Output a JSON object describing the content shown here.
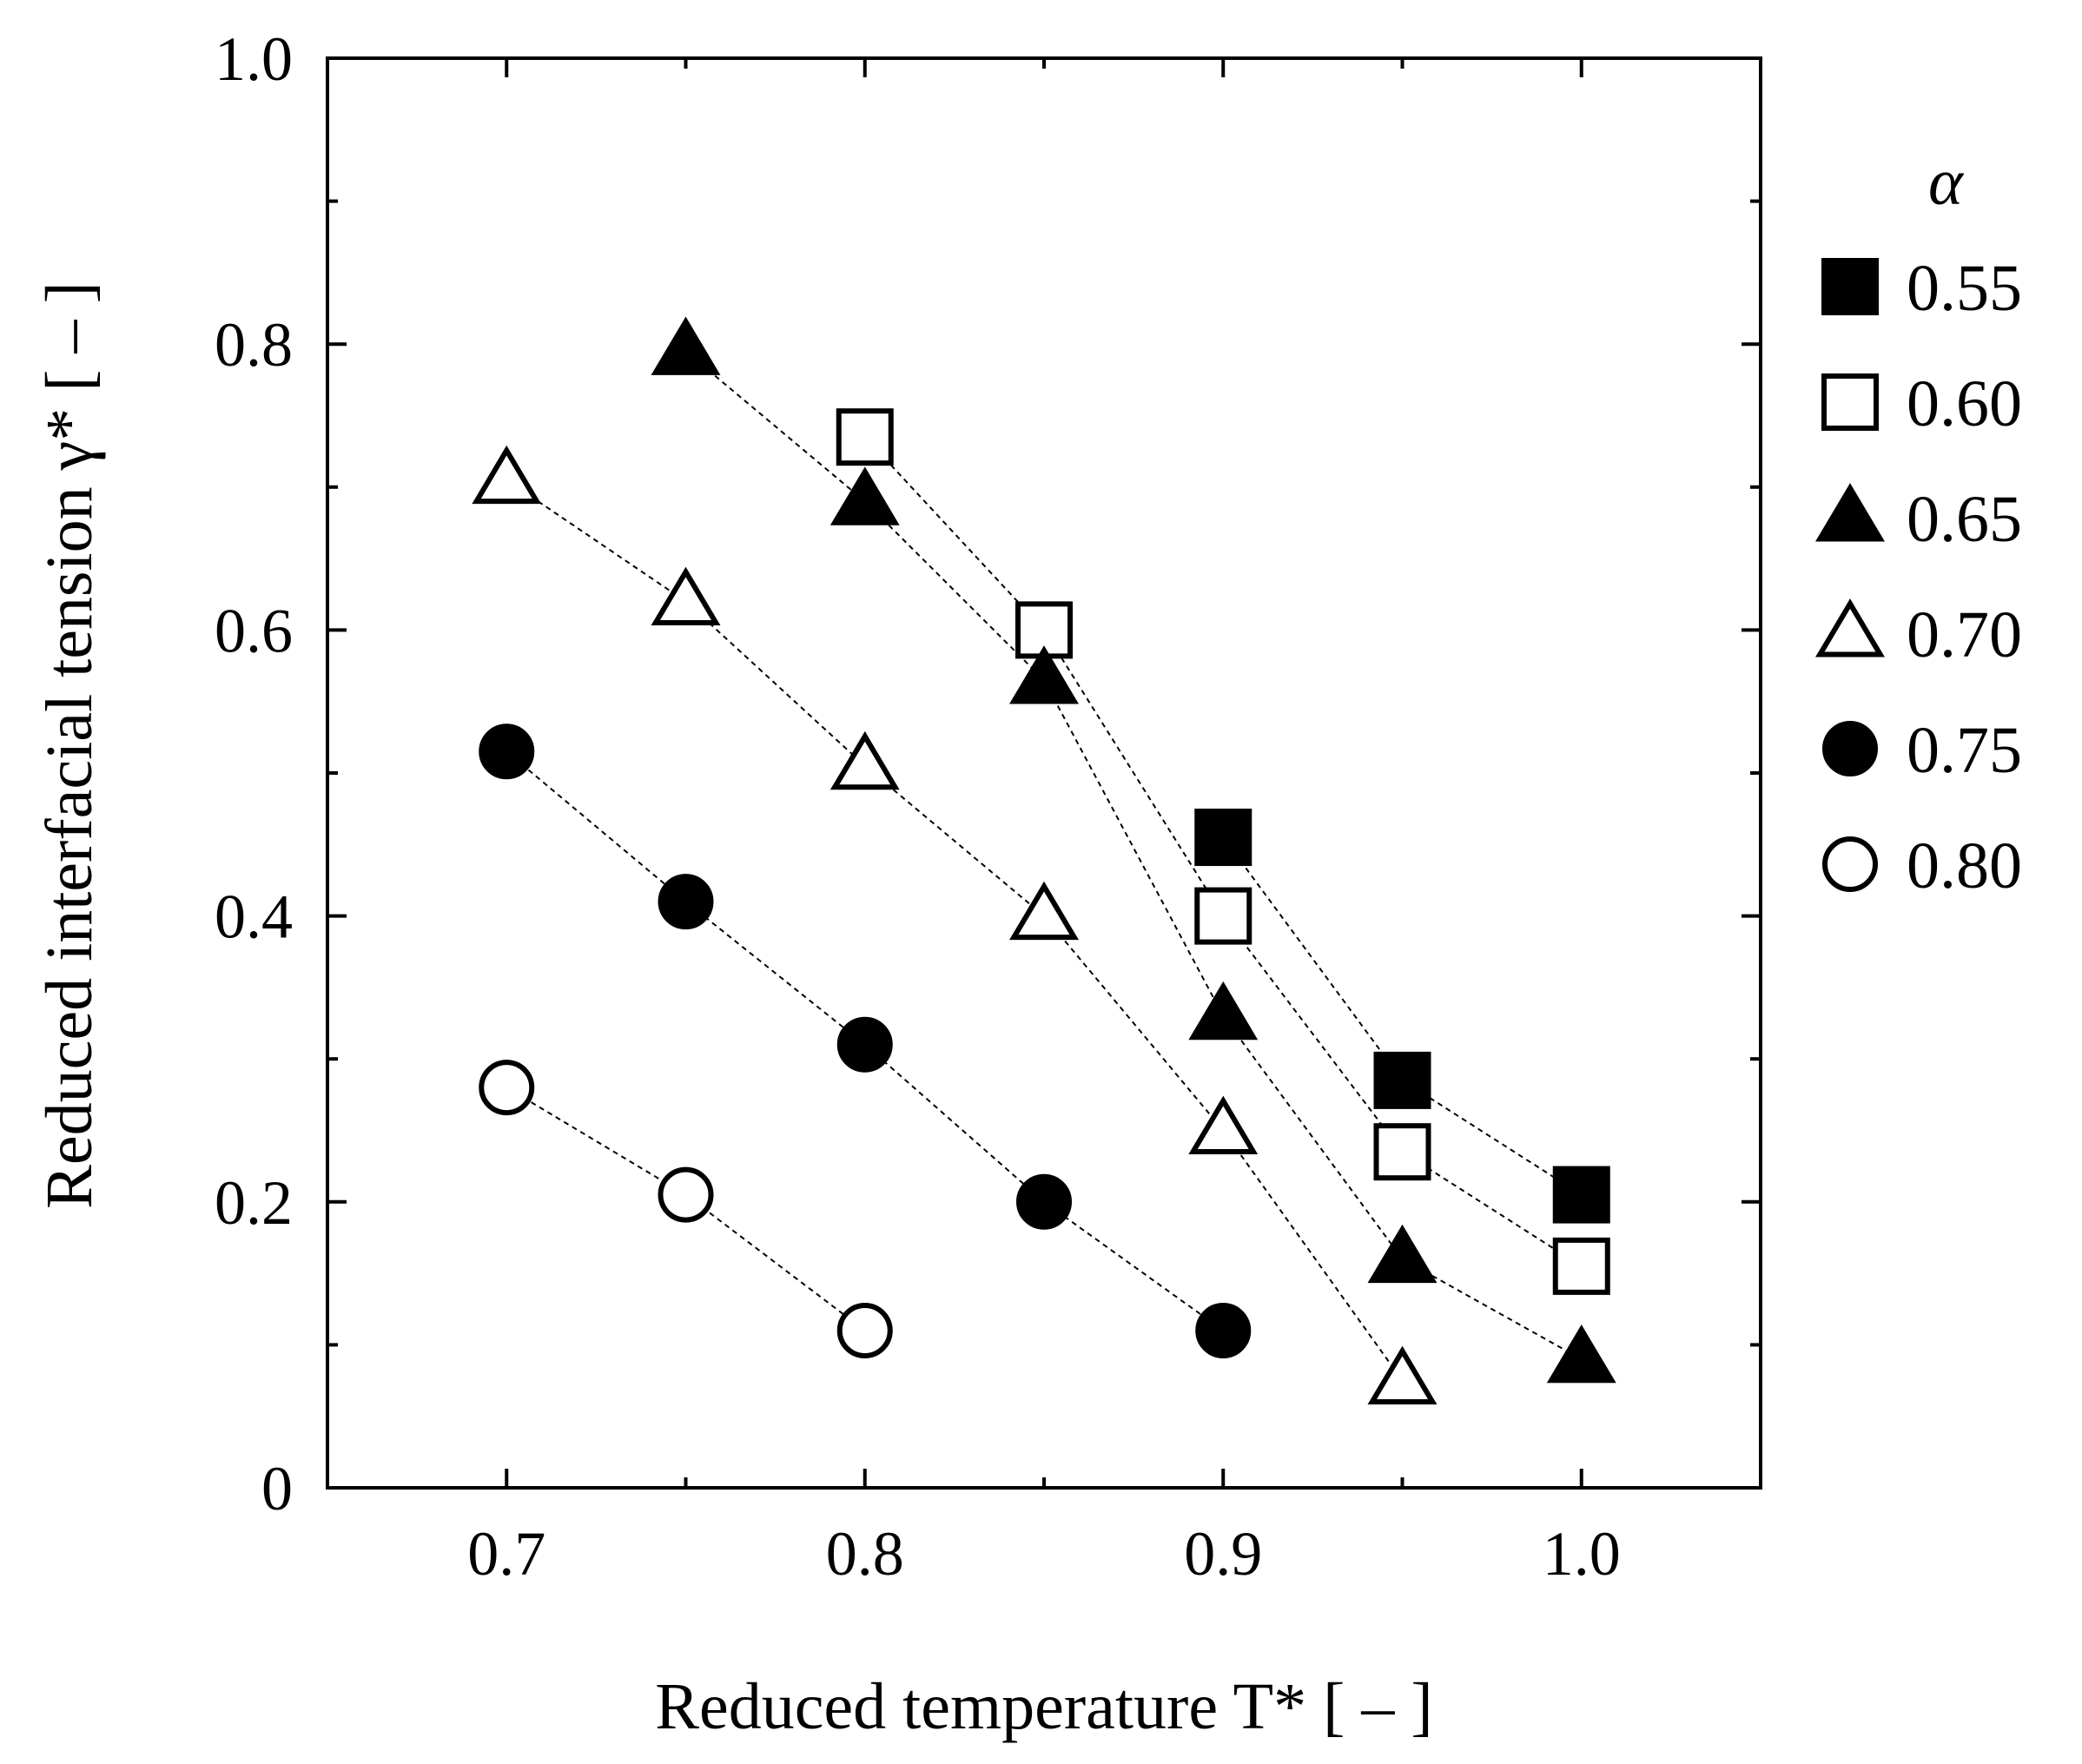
{
  "chart_data": {
    "type": "scatter",
    "xlabel": "Reduced temperature T* [ – ]",
    "ylabel": "Reduced interfacial tension γ* [ – ]",
    "xlim": [
      0.65,
      1.05
    ],
    "ylim": [
      0,
      1.0
    ],
    "xticks": [
      "0.7",
      "0.8",
      "0.9",
      "1.0"
    ],
    "yticks": [
      "0",
      "0.2",
      "0.4",
      "0.6",
      "0.8",
      "1.0"
    ],
    "grid": false,
    "legend": {
      "title": "α",
      "position": "right-outside"
    },
    "series": [
      {
        "name": "0.55",
        "marker": "square",
        "filled": true,
        "x": [
          0.9,
          0.95,
          1.0
        ],
        "y": [
          0.455,
          0.285,
          0.205
        ]
      },
      {
        "name": "0.60",
        "marker": "square",
        "filled": false,
        "x": [
          0.8,
          0.85,
          0.9,
          0.95,
          1.0
        ],
        "y": [
          0.735,
          0.6,
          0.4,
          0.235,
          0.155
        ]
      },
      {
        "name": "0.65",
        "marker": "triangle",
        "filled": true,
        "x": [
          0.75,
          0.8,
          0.85,
          0.9,
          0.95,
          1.0
        ],
        "y": [
          0.795,
          0.69,
          0.565,
          0.33,
          0.16,
          0.09
        ]
      },
      {
        "name": "0.70",
        "marker": "triangle",
        "filled": false,
        "x": [
          0.7,
          0.75,
          0.8,
          0.85,
          0.9,
          0.95
        ],
        "y": [
          0.705,
          0.62,
          0.505,
          0.4,
          0.25,
          0.075
        ]
      },
      {
        "name": "0.75",
        "marker": "circle",
        "filled": true,
        "x": [
          0.7,
          0.75,
          0.8,
          0.85,
          0.9
        ],
        "y": [
          0.515,
          0.41,
          0.31,
          0.2,
          0.11
        ]
      },
      {
        "name": "0.80",
        "marker": "circle",
        "filled": false,
        "x": [
          0.7,
          0.75,
          0.8
        ],
        "y": [
          0.28,
          0.205,
          0.11
        ]
      }
    ]
  }
}
